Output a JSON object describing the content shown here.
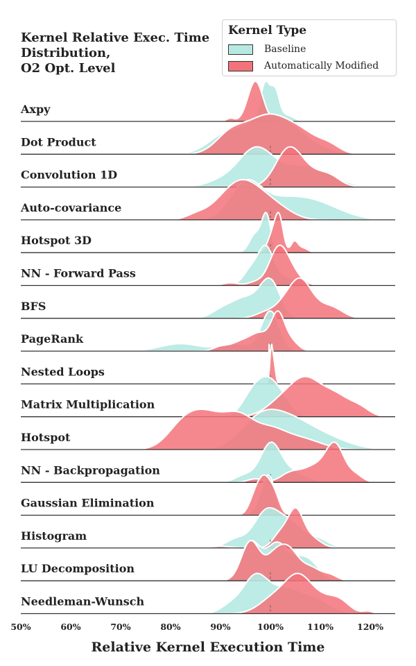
{
  "chart_data": {
    "type": "ridgeline",
    "title": [
      "Kernel Relative Exec. Time",
      "Distribution,",
      "O2 Opt. Level"
    ],
    "xlabel": "Relative Kernel Execution Time",
    "xlim": [
      50,
      125
    ],
    "xticks": [
      50,
      60,
      70,
      80,
      90,
      100,
      110,
      120
    ],
    "xtick_labels": [
      "50%",
      "60%",
      "70%",
      "80%",
      "90%",
      "100%",
      "110%",
      "120%"
    ],
    "reference_line": 100,
    "legend": {
      "title": "Kernel Type",
      "placement": "top-right",
      "entries": [
        {
          "name": "Baseline",
          "color": "#b6e9e2"
        },
        {
          "name": "Automatically Modified",
          "color": "#f3737a"
        }
      ]
    },
    "series": [
      {
        "name": "Axpy",
        "baseline": [
          [
            99,
            1,
            1.2
          ],
          [
            101,
            0.8,
            0.8
          ],
          [
            103,
            1.6,
            0.2
          ]
        ],
        "modified": [
          [
            97,
            1.5,
            1.0
          ],
          [
            92,
            0.8,
            0.08
          ]
        ]
      },
      {
        "name": "Dot Product",
        "baseline": [
          [
            100,
            6,
            1.0
          ],
          [
            90,
            3,
            0.25
          ]
        ],
        "modified": [
          [
            99,
            4,
            1.0
          ],
          [
            92,
            3,
            0.55
          ],
          [
            106,
            4,
            0.6
          ],
          [
            112,
            2,
            0.15
          ]
        ]
      },
      {
        "name": "Convolution 1D",
        "baseline": [
          [
            97,
            3.5,
            0.7
          ],
          [
            107,
            5,
            0.4
          ],
          [
            90,
            3,
            0.1
          ]
        ],
        "modified": [
          [
            103.5,
            2.5,
            1.0
          ],
          [
            107,
            4,
            0.55
          ],
          [
            112,
            2,
            0.2
          ]
        ]
      },
      {
        "name": "Auto-covariance",
        "baseline": [
          [
            95,
            3,
            0.7
          ],
          [
            102,
            6,
            0.45
          ],
          [
            110,
            5,
            0.25
          ]
        ],
        "modified": [
          [
            94,
            3,
            1.0
          ],
          [
            90,
            3,
            0.45
          ],
          [
            98,
            3,
            0.6
          ],
          [
            85,
            2,
            0.15
          ],
          [
            102,
            3,
            0.3
          ]
        ]
      },
      {
        "name": "Hotspot 3D",
        "baseline": [
          [
            99.2,
            0.9,
            1.0
          ],
          [
            97,
            1.2,
            0.5
          ]
        ],
        "modified": [
          [
            101.8,
            0.8,
            1.0
          ],
          [
            100.5,
            1,
            0.6
          ],
          [
            104.8,
            0.7,
            0.35
          ],
          [
            106.5,
            1,
            0.15
          ]
        ]
      },
      {
        "name": "NN - Forward Pass",
        "baseline": [
          [
            99,
            1.5,
            0.7
          ],
          [
            96,
            1.5,
            0.3
          ],
          [
            102,
            3,
            0.2
          ]
        ],
        "modified": [
          [
            101.5,
            1.8,
            1.0
          ],
          [
            104,
            2,
            0.4
          ],
          [
            92,
            1.5,
            0.08
          ],
          [
            97,
            1.5,
            0.1
          ]
        ]
      },
      {
        "name": "BFS",
        "baseline": [
          [
            100,
            2,
            0.6
          ],
          [
            95,
            3,
            0.35
          ],
          [
            90,
            2,
            0.1
          ]
        ],
        "modified": [
          [
            106,
            2,
            1.0
          ],
          [
            103,
            2,
            0.5
          ],
          [
            109,
            3,
            0.45
          ],
          [
            113,
            2,
            0.2
          ],
          [
            99,
            2,
            0.2
          ]
        ]
      },
      {
        "name": "PageRank",
        "baseline": [
          [
            100,
            1.8,
            0.75
          ],
          [
            82,
            4,
            0.14
          ],
          [
            93,
            3,
            0.13
          ]
        ],
        "modified": [
          [
            101.5,
            1.3,
            1.0
          ],
          [
            98,
            2,
            0.5
          ],
          [
            94,
            2,
            0.25
          ],
          [
            90,
            1.5,
            0.12
          ],
          [
            104,
            1.5,
            0.3
          ]
        ]
      },
      {
        "name": "Nested Loops",
        "baseline": [
          [
            99.8,
            0.15,
            1.0
          ]
        ],
        "modified": [
          [
            100.2,
            0.3,
            0.9
          ],
          [
            100.8,
            0.3,
            0.4
          ]
        ]
      },
      {
        "name": "Matrix Multiplication",
        "baseline": [
          [
            99.5,
            2.5,
            1.0
          ],
          [
            96,
            2,
            0.4
          ],
          [
            103,
            2,
            0.2
          ]
        ],
        "modified": [
          [
            107,
            3,
            1.0
          ],
          [
            113,
            3,
            0.6
          ],
          [
            102,
            3,
            0.4
          ],
          [
            118,
            2,
            0.2
          ]
        ]
      },
      {
        "name": "Hotspot",
        "baseline": [
          [
            98,
            4,
            0.8
          ],
          [
            104,
            4,
            0.5
          ],
          [
            110,
            5,
            0.35
          ]
        ],
        "modified": [
          [
            87,
            4,
            0.95
          ],
          [
            94,
            3,
            0.75
          ],
          [
            100,
            3,
            0.45
          ],
          [
            82,
            3,
            0.4
          ],
          [
            106,
            4,
            0.3
          ]
        ]
      },
      {
        "name": "NN - Backpropagation",
        "baseline": [
          [
            100,
            2,
            1.0
          ],
          [
            104,
            3,
            0.3
          ],
          [
            95,
            2,
            0.2
          ]
        ],
        "modified": [
          [
            113,
            1.8,
            1.0
          ],
          [
            109,
            2.5,
            0.45
          ],
          [
            104,
            2,
            0.25
          ],
          [
            117,
            1.5,
            0.2
          ],
          [
            97,
            1.5,
            0.1
          ]
        ]
      },
      {
        "name": "Gaussian Elimination",
        "baseline": [
          [
            99.8,
            1.2,
            1.0
          ],
          [
            98,
            1.2,
            0.3
          ]
        ],
        "modified": [
          [
            99,
            1.3,
            0.95
          ],
          [
            97,
            1.2,
            0.5
          ],
          [
            101,
            1,
            0.4
          ]
        ]
      },
      {
        "name": "Histogram",
        "baseline": [
          [
            99,
            2.5,
            0.4
          ],
          [
            104,
            3,
            0.3
          ],
          [
            93,
            2,
            0.1
          ],
          [
            110,
            2,
            0.08
          ]
        ],
        "modified": [
          [
            105,
            1.5,
            1.0
          ],
          [
            102,
            1.5,
            0.4
          ],
          [
            108,
            2,
            0.3
          ],
          [
            90,
            2,
            0.05
          ]
        ]
      },
      {
        "name": "LU Decomposition",
        "baseline": [
          [
            96,
            2,
            0.8
          ],
          [
            101,
            2,
            0.6
          ],
          [
            105,
            3,
            0.4
          ],
          [
            108,
            2,
            0.2
          ]
        ],
        "modified": [
          [
            96,
            1.8,
            0.75
          ],
          [
            101,
            2,
            0.5
          ],
          [
            104,
            1.8,
            0.45
          ],
          [
            108,
            2,
            0.25
          ],
          [
            112,
            1.5,
            0.1
          ]
        ]
      },
      {
        "name": "Needleman-Wunsch",
        "baseline": [
          [
            97,
            2.5,
            0.95
          ],
          [
            103,
            3,
            0.6
          ],
          [
            109,
            3,
            0.35
          ],
          [
            92,
            2,
            0.2
          ]
        ],
        "modified": [
          [
            105.5,
            2.5,
            1.0
          ],
          [
            101,
            3,
            0.55
          ],
          [
            110,
            3,
            0.5
          ],
          [
            114,
            2,
            0.3
          ],
          [
            119.5,
            1,
            0.08
          ]
        ]
      }
    ]
  }
}
